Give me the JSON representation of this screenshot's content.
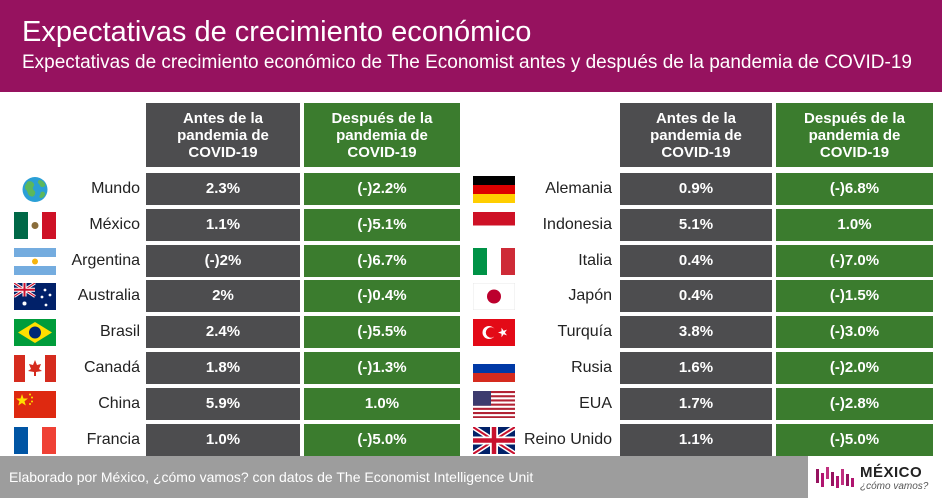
{
  "header": {
    "title": "Expectativas de crecimiento económico",
    "subtitle": "Expectativas de crecimiento económico de The Economist antes y después de la pandemia de COVID-19"
  },
  "colors": {
    "header_bg": "#96125f",
    "before_col": "#4d4d4f",
    "after_col": "#3b7c2e",
    "footer_bg": "#9d9d9d"
  },
  "chart_data": {
    "type": "table",
    "title": "Expectativas de crecimiento económico",
    "subtitle": "Expectativas de crecimiento económico de The Economist antes y después de la pandemia de COVID-19",
    "columns": [
      "Antes de la pandemia de COVID-19",
      "Después de la pandemia de COVID-19"
    ],
    "left_table": [
      {
        "country": "Mundo",
        "flag": "globe-icon",
        "before": "2.3%",
        "after": "(-)2.2%"
      },
      {
        "country": "México",
        "flag": "mexico-flag-icon",
        "before": "1.1%",
        "after": "(-)5.1%"
      },
      {
        "country": "Argentina",
        "flag": "argentina-flag-icon",
        "before": "(-)2%",
        "after": "(-)6.7%"
      },
      {
        "country": "Australia",
        "flag": "australia-flag-icon",
        "before": "2%",
        "after": "(-)0.4%"
      },
      {
        "country": "Brasil",
        "flag": "brazil-flag-icon",
        "before": "2.4%",
        "after": "(-)5.5%"
      },
      {
        "country": "Canadá",
        "flag": "canada-flag-icon",
        "before": "1.8%",
        "after": "(-)1.3%"
      },
      {
        "country": "China",
        "flag": "china-flag-icon",
        "before": "5.9%",
        "after": "1.0%"
      },
      {
        "country": "Francia",
        "flag": "france-flag-icon",
        "before": "1.0%",
        "after": "(-)5.0%"
      }
    ],
    "right_table": [
      {
        "country": "Alemania",
        "flag": "germany-flag-icon",
        "before": "0.9%",
        "after": "(-)6.8%"
      },
      {
        "country": "Indonesia",
        "flag": "indonesia-flag-icon",
        "before": "5.1%",
        "after": "1.0%"
      },
      {
        "country": "Italia",
        "flag": "italy-flag-icon",
        "before": "0.4%",
        "after": "(-)7.0%"
      },
      {
        "country": "Japón",
        "flag": "japan-flag-icon",
        "before": "0.4%",
        "after": "(-)1.5%"
      },
      {
        "country": "Turquía",
        "flag": "turkey-flag-icon",
        "before": "3.8%",
        "after": "(-)3.0%"
      },
      {
        "country": "Rusia",
        "flag": "russia-flag-icon",
        "before": "1.6%",
        "after": "(-)2.0%"
      },
      {
        "country": "EUA",
        "flag": "usa-flag-icon",
        "before": "1.7%",
        "after": "(-)2.8%"
      },
      {
        "country": "Reino Unido",
        "flag": "uk-flag-icon",
        "before": "1.1%",
        "after": "(-)5.0%"
      }
    ]
  },
  "table_headers": {
    "before_l1": "Antes de la",
    "before_l2": "pandemia de",
    "before_l3": "COVID-19",
    "after_l1": "Después de la",
    "after_l2": "pandemia de",
    "after_l3": "COVID-19"
  },
  "footer": {
    "credit": "Elaborado por México, ¿cómo vamos? con datos de The Economist Intelligence Unit",
    "logo_title": "MÉXICO",
    "logo_sub": "¿cómo vamos?"
  }
}
